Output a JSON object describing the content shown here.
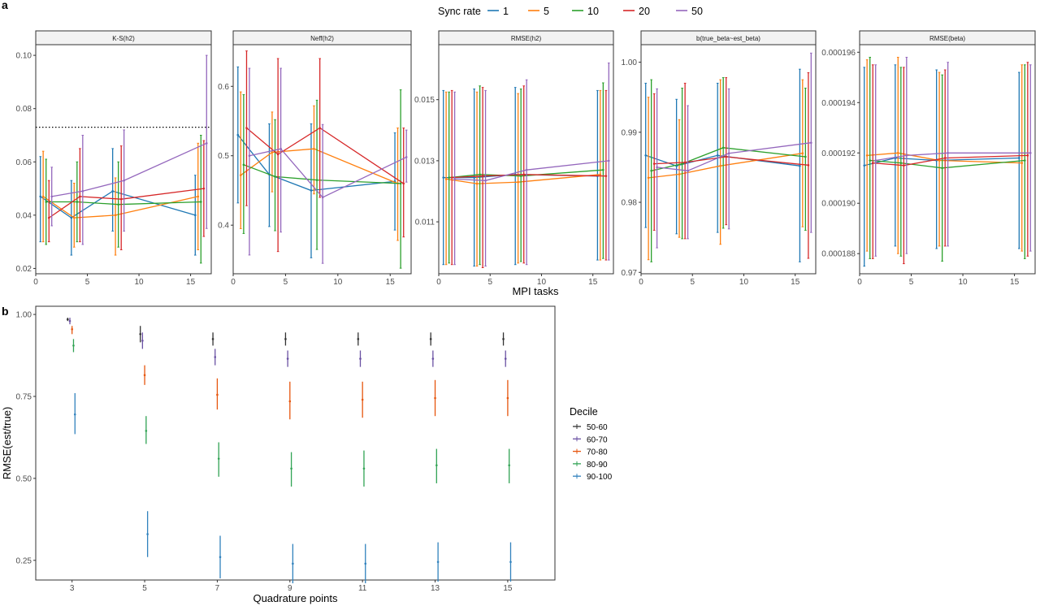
{
  "figure": {
    "panel_a_tag": "a",
    "panel_b_tag": "b"
  },
  "colors": {
    "1": "#1F78B4",
    "5": "#FF7F0E",
    "10": "#2CA02C",
    "20": "#D62728",
    "50": "#9467BD",
    "50-60": "#333333",
    "60-70": "#6A51A3",
    "70-80": "#E6550D",
    "80-90": "#31A354",
    "90-100": "#3182BD"
  },
  "legend_a": {
    "title": "Sync rate",
    "entries": [
      "1",
      "5",
      "10",
      "20",
      "50"
    ]
  },
  "legend_b": {
    "title": "Decile",
    "entries": [
      "50-60",
      "60-70",
      "70-80",
      "80-90",
      "90-100"
    ]
  },
  "chart_data": [
    {
      "panel": "a",
      "type": "line",
      "facet_title": "K-S(h2)",
      "xlabel": "MPI tasks",
      "ylabel": "",
      "xlim": [
        0,
        17
      ],
      "ylim": [
        0.018,
        0.104
      ],
      "x_ticks": [
        0,
        5,
        10,
        15
      ],
      "y_ticks": [
        0.02,
        0.04,
        0.06,
        0.08,
        0.1
      ],
      "y_tick_labels": [
        "0.02",
        "0.04",
        "0.06",
        "0.08",
        "0.10"
      ],
      "reference_line": 0.073,
      "x": [
        1,
        4,
        8,
        16
      ],
      "series": [
        {
          "name": "1",
          "values": [
            0.047,
            0.039,
            0.049,
            0.04
          ],
          "lower": [
            0.03,
            0.025,
            0.034,
            0.025
          ],
          "upper": [
            0.062,
            0.053,
            0.065,
            0.055
          ]
        },
        {
          "name": "5",
          "values": [
            0.047,
            0.039,
            0.04,
            0.047
          ],
          "lower": [
            0.03,
            0.028,
            0.025,
            0.027
          ],
          "upper": [
            0.064,
            0.052,
            0.054,
            0.067
          ]
        },
        {
          "name": "10",
          "values": [
            0.045,
            0.045,
            0.044,
            0.045
          ],
          "lower": [
            0.029,
            0.03,
            0.028,
            0.022
          ],
          "upper": [
            0.061,
            0.06,
            0.06,
            0.07
          ]
        },
        {
          "name": "20",
          "values": [
            0.039,
            0.047,
            0.046,
            0.05
          ],
          "lower": [
            0.03,
            0.03,
            0.027,
            0.032
          ],
          "upper": [
            0.053,
            0.065,
            0.066,
            0.068
          ]
        },
        {
          "name": "50",
          "values": [
            0.047,
            0.049,
            0.053,
            0.067
          ],
          "lower": [
            0.036,
            0.029,
            0.034,
            0.035
          ],
          "upper": [
            0.058,
            0.07,
            0.072,
            0.1
          ]
        }
      ]
    },
    {
      "panel": "a",
      "type": "line",
      "facet_title": "Neff(h2)",
      "xlabel": "",
      "ylabel": "",
      "xlim": [
        0,
        17
      ],
      "ylim": [
        0.33,
        0.66
      ],
      "x_ticks": [
        0,
        5,
        10,
        15
      ],
      "y_ticks": [
        0.4,
        0.5,
        0.6
      ],
      "y_tick_labels": [
        "0.4",
        "0.5",
        "0.6"
      ],
      "x": [
        1,
        4,
        8,
        16
      ],
      "series": [
        {
          "name": "1",
          "values": [
            0.53,
            0.473,
            0.45,
            0.463
          ],
          "lower": [
            0.432,
            0.398,
            0.353,
            0.393
          ],
          "upper": [
            0.628,
            0.546,
            0.546,
            0.533
          ]
        },
        {
          "name": "5",
          "values": [
            0.472,
            0.505,
            0.51,
            0.46
          ],
          "lower": [
            0.395,
            0.448,
            0.445,
            0.378
          ],
          "upper": [
            0.592,
            0.563,
            0.572,
            0.54
          ]
        },
        {
          "name": "10",
          "values": [
            0.487,
            0.47,
            0.465,
            0.46
          ],
          "lower": [
            0.388,
            0.392,
            0.365,
            0.338
          ],
          "upper": [
            0.588,
            0.552,
            0.58,
            0.595
          ]
        },
        {
          "name": "20",
          "values": [
            0.54,
            0.502,
            0.54,
            0.46
          ],
          "lower": [
            0.428,
            0.362,
            0.44,
            0.383
          ],
          "upper": [
            0.651,
            0.64,
            0.64,
            0.54
          ]
        },
        {
          "name": "50",
          "values": [
            0.5,
            0.51,
            0.44,
            0.498
          ],
          "lower": [
            0.357,
            0.39,
            0.345,
            0.462
          ],
          "upper": [
            0.626,
            0.626,
            0.545,
            0.537
          ]
        }
      ]
    },
    {
      "panel": "a",
      "type": "line",
      "facet_title": "RMSE(h2)",
      "xlabel": "",
      "ylabel": "",
      "xlim": [
        0,
        17
      ],
      "ylim": [
        0.0093,
        0.0168
      ],
      "x_ticks": [
        0,
        5,
        10,
        15
      ],
      "y_ticks": [
        0.011,
        0.013,
        0.015
      ],
      "y_tick_labels": [
        "0.011",
        "0.013",
        "0.015"
      ],
      "x": [
        1,
        4,
        8,
        16
      ],
      "series": [
        {
          "name": "1",
          "values": [
            0.01245,
            0.01245,
            0.01255,
            0.0125
          ],
          "lower": [
            0.0096,
            0.00955,
            0.0096,
            0.00975
          ],
          "upper": [
            0.0153,
            0.01535,
            0.0154,
            0.0153
          ]
        },
        {
          "name": "5",
          "values": [
            0.0124,
            0.01225,
            0.0123,
            0.01255
          ],
          "lower": [
            0.0096,
            0.00955,
            0.00965,
            0.00975
          ],
          "upper": [
            0.01525,
            0.01525,
            0.0152,
            0.0153
          ]
        },
        {
          "name": "10",
          "values": [
            0.01245,
            0.01255,
            0.0125,
            0.0127
          ],
          "lower": [
            0.00965,
            0.0096,
            0.0097,
            0.0098
          ],
          "upper": [
            0.01525,
            0.01545,
            0.01535,
            0.01555
          ]
        },
        {
          "name": "20",
          "values": [
            0.01245,
            0.0125,
            0.01255,
            0.0125
          ],
          "lower": [
            0.0096,
            0.0095,
            0.00965,
            0.00975
          ],
          "upper": [
            0.0153,
            0.0154,
            0.01545,
            0.0153
          ]
        },
        {
          "name": "50",
          "values": [
            0.0124,
            0.01235,
            0.0127,
            0.013
          ],
          "lower": [
            0.0096,
            0.00955,
            0.0096,
            0.00975
          ],
          "upper": [
            0.01525,
            0.0153,
            0.01565,
            0.0162
          ]
        }
      ]
    },
    {
      "panel": "a",
      "type": "line",
      "facet_title": "b(true_beta~est_beta)",
      "xlabel": "",
      "ylabel": "",
      "xlim": [
        0,
        17
      ],
      "ylim": [
        0.9698,
        1.0025
      ],
      "x_ticks": [
        0,
        5,
        10,
        15
      ],
      "y_ticks": [
        0.97,
        0.98,
        0.99,
        1.0
      ],
      "y_tick_labels": [
        "0.97",
        "0.98",
        "0.99",
        "1.00"
      ],
      "x": [
        1,
        4,
        8,
        16
      ],
      "series": [
        {
          "name": "1",
          "values": [
            0.9867,
            0.9852,
            0.9867,
            0.9852
          ],
          "lower": [
            0.9764,
            0.9755,
            0.9757,
            0.9715
          ],
          "upper": [
            0.997,
            0.9947,
            0.997,
            0.999
          ]
        },
        {
          "name": "5",
          "values": [
            0.9835,
            0.984,
            0.9852,
            0.987
          ],
          "lower": [
            0.9718,
            0.975,
            0.974,
            0.9765
          ],
          "upper": [
            0.995,
            0.9918,
            0.9975,
            0.9975
          ]
        },
        {
          "name": "10",
          "values": [
            0.9845,
            0.9855,
            0.9878,
            0.9865
          ],
          "lower": [
            0.9715,
            0.9748,
            0.9763,
            0.976
          ],
          "upper": [
            0.9975,
            0.9963,
            0.9978,
            0.9963
          ]
        },
        {
          "name": "20",
          "values": [
            0.9855,
            0.9857,
            0.9865,
            0.9853
          ],
          "lower": [
            0.976,
            0.9748,
            0.9768,
            0.972
          ],
          "upper": [
            0.9955,
            0.997,
            0.9978,
            0.9985
          ]
        },
        {
          "name": "50",
          "values": [
            0.985,
            0.9845,
            0.987,
            0.9885
          ],
          "lower": [
            0.9735,
            0.9748,
            0.9762,
            0.9757
          ],
          "upper": [
            0.9962,
            0.9938,
            0.9962,
            1.0013
          ]
        }
      ]
    },
    {
      "panel": "a",
      "type": "line",
      "facet_title": "RMSE(beta)",
      "xlabel": "",
      "ylabel": "",
      "xlim": [
        0,
        17
      ],
      "ylim": [
        0.0001872,
        0.0001963
      ],
      "x_ticks": [
        0,
        5,
        10,
        15
      ],
      "y_ticks": [
        0.000188,
        0.00019,
        0.000192,
        0.000194,
        0.000196
      ],
      "y_tick_labels": [
        "0.000188",
        "0.000190",
        "0.000192",
        "0.000194",
        "0.000196"
      ],
      "x": [
        1,
        4,
        8,
        16
      ],
      "series": [
        {
          "name": "1",
          "values": [
            0.0001915,
            0.0001918,
            0.0001917,
            0.0001918
          ],
          "lower": [
            0.0001875,
            0.0001883,
            0.0001882,
            0.0001882
          ],
          "upper": [
            0.0001954,
            0.0001955,
            0.0001953,
            0.0001952
          ]
        },
        {
          "name": "5",
          "values": [
            0.0001919,
            0.000192,
            0.0001917,
            0.0001916
          ],
          "lower": [
            0.0001881,
            0.000188,
            0.0001883,
            0.0001881
          ],
          "upper": [
            0.0001957,
            0.0001958,
            0.0001952,
            0.0001955
          ]
        },
        {
          "name": "10",
          "values": [
            0.0001917,
            0.0001916,
            0.0001914,
            0.0001917
          ],
          "lower": [
            0.0001878,
            0.0001879,
            0.0001877,
            0.0001878
          ],
          "upper": [
            0.0001958,
            0.0001954,
            0.0001951,
            0.0001955
          ]
        },
        {
          "name": "20",
          "values": [
            0.0001916,
            0.0001915,
            0.0001918,
            0.0001919
          ],
          "lower": [
            0.0001878,
            0.0001876,
            0.0001883,
            0.0001879
          ],
          "upper": [
            0.0001955,
            0.0001954,
            0.0001953,
            0.0001956
          ]
        },
        {
          "name": "50",
          "values": [
            0.0001917,
            0.0001919,
            0.000192,
            0.000192
          ],
          "lower": [
            0.0001879,
            0.000188,
            0.0001883,
            0.0001881
          ],
          "upper": [
            0.0001955,
            0.0001958,
            0.0001956,
            0.0001955
          ]
        }
      ]
    },
    {
      "panel": "b",
      "type": "scatter",
      "facet_title": "",
      "xlabel": "Quadrature points",
      "ylabel": "RMSE(est/true)",
      "xlim": [
        2.0,
        16.3
      ],
      "ylim": [
        0.19,
        1.025
      ],
      "x_ticks": [
        3,
        5,
        7,
        9,
        11,
        13,
        15
      ],
      "y_ticks": [
        0.25,
        0.5,
        0.75,
        1.0
      ],
      "y_tick_labels": [
        "0.25",
        "0.50",
        "0.75",
        "1.00"
      ],
      "x": [
        3,
        5,
        7,
        9,
        11,
        13,
        15
      ],
      "series": [
        {
          "name": "50-60",
          "values": [
            0.985,
            0.94,
            0.925,
            0.925,
            0.925,
            0.925,
            0.925
          ],
          "lower": [
            0.98,
            0.915,
            0.905,
            0.905,
            0.905,
            0.905,
            0.905
          ],
          "upper": [
            0.99,
            0.965,
            0.945,
            0.945,
            0.945,
            0.945,
            0.945
          ]
        },
        {
          "name": "60-70",
          "values": [
            0.98,
            0.92,
            0.87,
            0.865,
            0.865,
            0.865,
            0.865
          ],
          "lower": [
            0.97,
            0.895,
            0.845,
            0.84,
            0.84,
            0.84,
            0.84
          ],
          "upper": [
            0.99,
            0.945,
            0.895,
            0.89,
            0.89,
            0.89,
            0.89
          ]
        },
        {
          "name": "70-80",
          "values": [
            0.955,
            0.815,
            0.755,
            0.735,
            0.74,
            0.745,
            0.745
          ],
          "lower": [
            0.94,
            0.785,
            0.71,
            0.68,
            0.685,
            0.69,
            0.69
          ],
          "upper": [
            0.965,
            0.845,
            0.805,
            0.795,
            0.795,
            0.8,
            0.8
          ]
        },
        {
          "name": "80-90",
          "values": [
            0.905,
            0.645,
            0.56,
            0.53,
            0.53,
            0.54,
            0.54
          ],
          "lower": [
            0.885,
            0.605,
            0.505,
            0.475,
            0.475,
            0.485,
            0.485
          ],
          "upper": [
            0.925,
            0.69,
            0.61,
            0.58,
            0.585,
            0.59,
            0.59
          ]
        },
        {
          "name": "90-100",
          "values": [
            0.695,
            0.33,
            0.26,
            0.24,
            0.24,
            0.245,
            0.245
          ],
          "lower": [
            0.635,
            0.26,
            0.195,
            0.18,
            0.18,
            0.185,
            0.185
          ],
          "upper": [
            0.76,
            0.4,
            0.325,
            0.3,
            0.3,
            0.305,
            0.305
          ]
        }
      ]
    }
  ]
}
